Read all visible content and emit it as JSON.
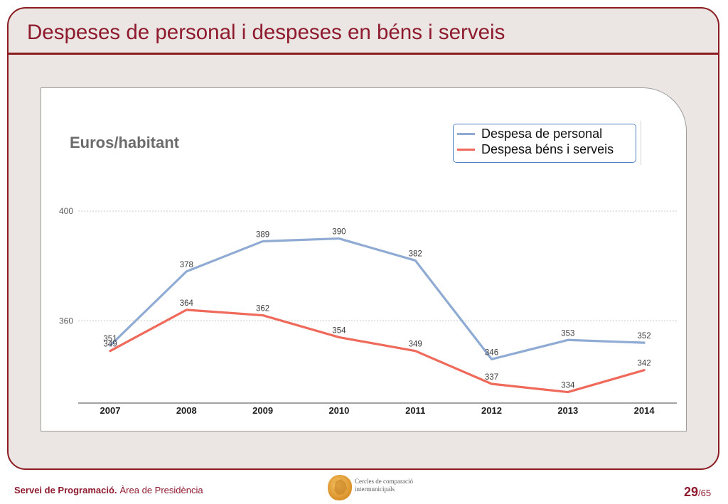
{
  "slide": {
    "title": "Despeses de personal i despeses en béns i serveis"
  },
  "chart_data": {
    "type": "line",
    "ylabel": "Euros/habitant",
    "categories": [
      "2007",
      "2008",
      "2009",
      "2010",
      "2011",
      "2012",
      "2013",
      "2014"
    ],
    "series": [
      {
        "name": "Despesa de personal",
        "color": "#8fabd3",
        "values": [
          351,
          378,
          389,
          390,
          382,
          346,
          353,
          352
        ]
      },
      {
        "name": "Despesa béns i serveis",
        "color": "#ef6a5b",
        "values": [
          349,
          364,
          362,
          354,
          349,
          337,
          334,
          342
        ]
      }
    ],
    "yticks": [
      400,
      360
    ],
    "ylim": [
      330,
      400
    ],
    "grid": true,
    "legend": "top-right",
    "data_labels": true
  },
  "footer": {
    "org_bold": "Servei de Programació.",
    "org_rest": "Àrea de Presidència",
    "logo_line1": "Cercles de comparació",
    "logo_line2": "intermunicipals",
    "page_current": "29",
    "page_total": "/65"
  },
  "theme": {
    "accent": "#8e1a2e"
  }
}
